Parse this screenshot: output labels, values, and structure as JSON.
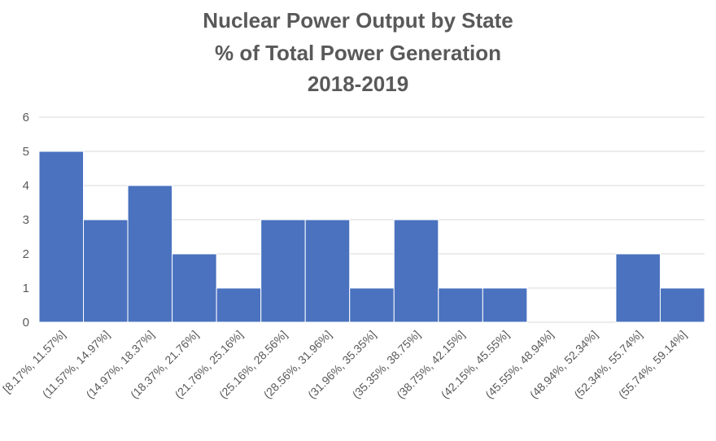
{
  "chart_data": {
    "type": "bar",
    "title_lines": [
      "Nuclear Power Output by State",
      "% of Total Power Generation",
      "2018-2019"
    ],
    "categories": [
      "[8.17%, 11.57%]",
      "(11.57%, 14.97%]",
      "(14.97%, 18.37%]",
      "(18.37%, 21.76%]",
      "(21.76%, 25.16%]",
      "(25.16%, 28.56%]",
      "(28.56%, 31.96%]",
      "(31.96%, 35.35%]",
      "(35.35%, 38.75%]",
      "(38.75%, 42.15%]",
      "(42.15%, 45.55%]",
      "(45.55%, 48.94%]",
      "(48.94%, 52.34%]",
      "(52.34%, 55.74%]",
      "(55.74%, 59.14%]"
    ],
    "values": [
      5,
      3,
      4,
      2,
      1,
      3,
      3,
      1,
      3,
      1,
      1,
      0,
      0,
      2,
      1
    ],
    "ylim": [
      0,
      6
    ],
    "yticks": [
      0,
      1,
      2,
      3,
      4,
      5,
      6
    ],
    "xlabel": "",
    "ylabel": "",
    "grid": true,
    "legend": "none",
    "colors": {
      "bar": "#4a72bf",
      "grid": "#d9d9d9",
      "text": "#595959"
    }
  }
}
